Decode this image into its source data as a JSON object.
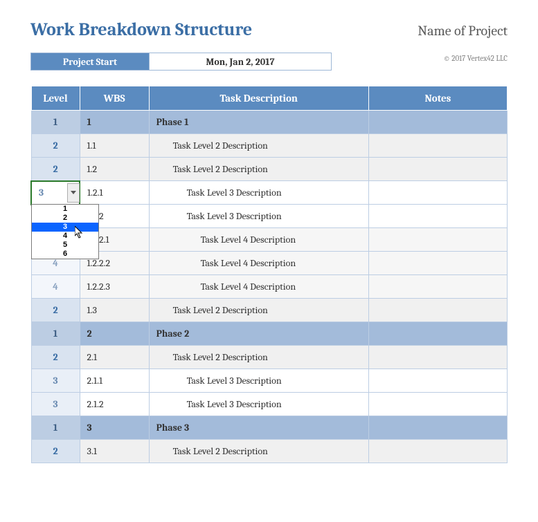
{
  "header": {
    "title": "Work Breakdown Structure",
    "project_name": "Name of Project",
    "start_label": "Project Start",
    "start_value": "Mon, Jan 2, 2017",
    "copyright": "© 2017 Vertex42 LLC"
  },
  "columns": {
    "level": "Level",
    "wbs": "WBS",
    "desc": "Task Description",
    "notes": "Notes"
  },
  "rows": [
    {
      "level": "1",
      "wbs": "1",
      "desc": "Phase 1",
      "indent": 1,
      "lvl": 1
    },
    {
      "level": "2",
      "wbs": "1.1",
      "desc": "Task Level 2 Description",
      "indent": 2,
      "lvl": 2
    },
    {
      "level": "2",
      "wbs": "1.2",
      "desc": "Task Level 2 Description",
      "indent": 2,
      "lvl": 2
    },
    {
      "level": "3",
      "wbs": "1.2.1",
      "desc": "Task Level 3 Description",
      "indent": 3,
      "lvl": 3,
      "dropdown": true
    },
    {
      "level": "3",
      "wbs": "1.2.2",
      "desc": "Task Level 3 Description",
      "indent": 3,
      "lvl": 3
    },
    {
      "level": "4",
      "wbs": "1.2.2.1",
      "desc": "Task Level 4 Description",
      "indent": 4,
      "lvl": 4
    },
    {
      "level": "4",
      "wbs": "1.2.2.2",
      "desc": "Task Level 4 Description",
      "indent": 4,
      "lvl": 4
    },
    {
      "level": "4",
      "wbs": "1.2.2.3",
      "desc": "Task Level 4 Description",
      "indent": 4,
      "lvl": 4
    },
    {
      "level": "2",
      "wbs": "1.3",
      "desc": "Task Level 2 Description",
      "indent": 2,
      "lvl": 2
    },
    {
      "level": "1",
      "wbs": "2",
      "desc": "Phase 2",
      "indent": 1,
      "lvl": 1
    },
    {
      "level": "2",
      "wbs": "2.1",
      "desc": "Task Level 2 Description",
      "indent": 2,
      "lvl": 2
    },
    {
      "level": "3",
      "wbs": "2.1.1",
      "desc": "Task Level 3 Description",
      "indent": 3,
      "lvl": 3
    },
    {
      "level": "3",
      "wbs": "2.1.2",
      "desc": "Task Level 3 Description",
      "indent": 3,
      "lvl": 3
    },
    {
      "level": "1",
      "wbs": "3",
      "desc": "Phase 3",
      "indent": 1,
      "lvl": 1
    },
    {
      "level": "2",
      "wbs": "3.1",
      "desc": "Task Level 2 Description",
      "indent": 2,
      "lvl": 2
    }
  ],
  "dropdown": {
    "options": [
      "1",
      "2",
      "3",
      "4",
      "5",
      "6"
    ],
    "selected_index": 2
  },
  "colors": {
    "header_blue": "#5b8bc0",
    "title_blue": "#3b6ea5",
    "border": "#bccde3",
    "phase_row_bg": "#a3bbda",
    "phase_level_bg": "#bccde3",
    "lvl2_level_bg": "#d9e3f0",
    "lvl3_level_bg": "#e9eff7",
    "lvl4_level_bg": "#f3f6fb",
    "alt_row_bg": "#f0f0f0",
    "dd_highlight": "#0a64ff",
    "cell_active_border": "#2a7a2a"
  }
}
